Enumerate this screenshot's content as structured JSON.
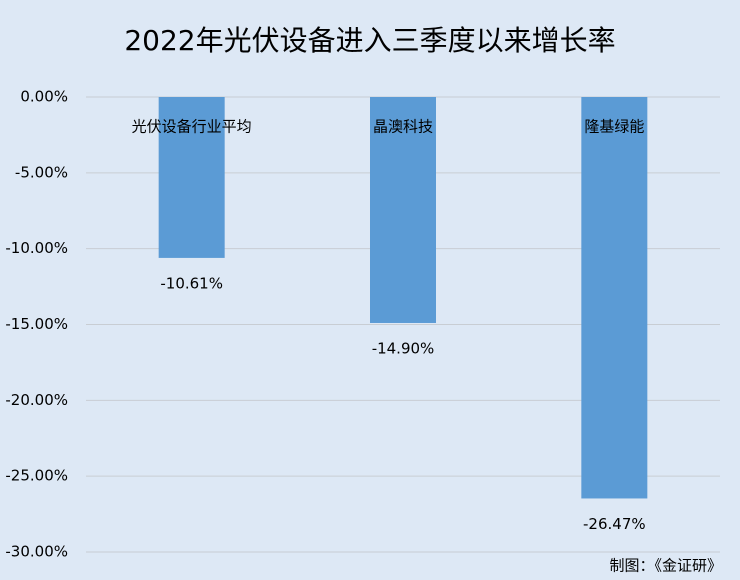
{
  "chart_data": {
    "type": "bar",
    "title": "2022年光伏设备进入三季度以来增长率",
    "categories": [
      "光伏设备行业平均",
      "晶澳科技",
      "隆基绿能"
    ],
    "values": [
      -10.61,
      -14.9,
      -26.47
    ],
    "value_labels": [
      "-10.61%",
      "-14.90%",
      "-26.47%"
    ],
    "color": "#5b9bd5",
    "ylim": [
      -30,
      0
    ],
    "yticks": [
      {
        "value": 0,
        "label": "0.00%"
      },
      {
        "value": -5,
        "label": "-5.00%"
      },
      {
        "value": -10,
        "label": "-10.00%"
      },
      {
        "value": -15,
        "label": "-15.00%"
      },
      {
        "value": -20,
        "label": "-20.00%"
      },
      {
        "value": -25,
        "label": "-25.00%"
      },
      {
        "value": -30,
        "label": "-30.00%"
      }
    ],
    "grid": true,
    "note": "制图：《金证研》"
  }
}
